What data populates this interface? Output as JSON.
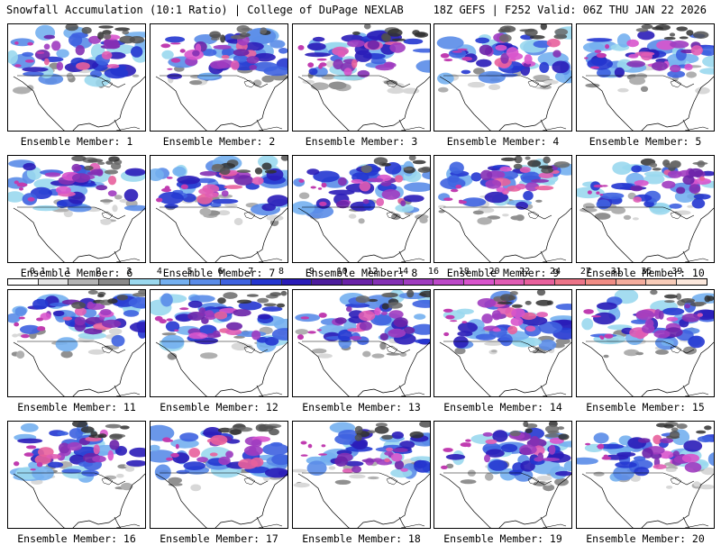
{
  "header": {
    "left_title": "Snowfall Accumulation (10:1 Ratio) | College of DuPage NEXLAB",
    "right_title": "18Z GEFS | F252 Valid: 06Z THU JAN 22 2026"
  },
  "colorbar": {
    "tick_labels": [
      "0.1",
      "1",
      "2",
      "3",
      "4",
      "5",
      "6",
      "7",
      "8",
      "9",
      "10",
      "12",
      "14",
      "16",
      "18",
      "20",
      "22",
      "24",
      "27",
      "31",
      "35",
      "39"
    ],
    "colors": [
      "#ffffff",
      "#e6e6e6",
      "#b4b4b4",
      "#8a8a8a",
      "#9ad8ee",
      "#74b0f0",
      "#5a8ce8",
      "#3e62e0",
      "#2436d0",
      "#2a1cb8",
      "#4c1c9c",
      "#6a22a8",
      "#8430b4",
      "#a03cc0",
      "#bc48c8",
      "#d854cc",
      "#e05cb4",
      "#e8609c",
      "#ec7488",
      "#f08c84",
      "#f4ac9c",
      "#f8ccb8",
      "#fce8dc"
    ]
  },
  "members": [
    {
      "label": "Ensemble Member: 1"
    },
    {
      "label": "Ensemble Member: 2"
    },
    {
      "label": "Ensemble Member: 3"
    },
    {
      "label": "Ensemble Member: 4"
    },
    {
      "label": "Ensemble Member: 5"
    },
    {
      "label": "Ensemble Member: 6"
    },
    {
      "label": "Ensemble Member: 7"
    },
    {
      "label": "Ensemble Member: 8"
    },
    {
      "label": "Ensemble Member: 9"
    },
    {
      "label": "Ensemble Member: 10"
    },
    {
      "label": "Ensemble Member: 11"
    },
    {
      "label": "Ensemble Member: 12"
    },
    {
      "label": "Ensemble Member: 13"
    },
    {
      "label": "Ensemble Member: 14"
    },
    {
      "label": "Ensemble Member: 15"
    },
    {
      "label": "Ensemble Member: 16"
    },
    {
      "label": "Ensemble Member: 17"
    },
    {
      "label": "Ensemble Member: 18"
    },
    {
      "label": "Ensemble Member: 19"
    },
    {
      "label": "Ensemble Member: 20"
    }
  ]
}
